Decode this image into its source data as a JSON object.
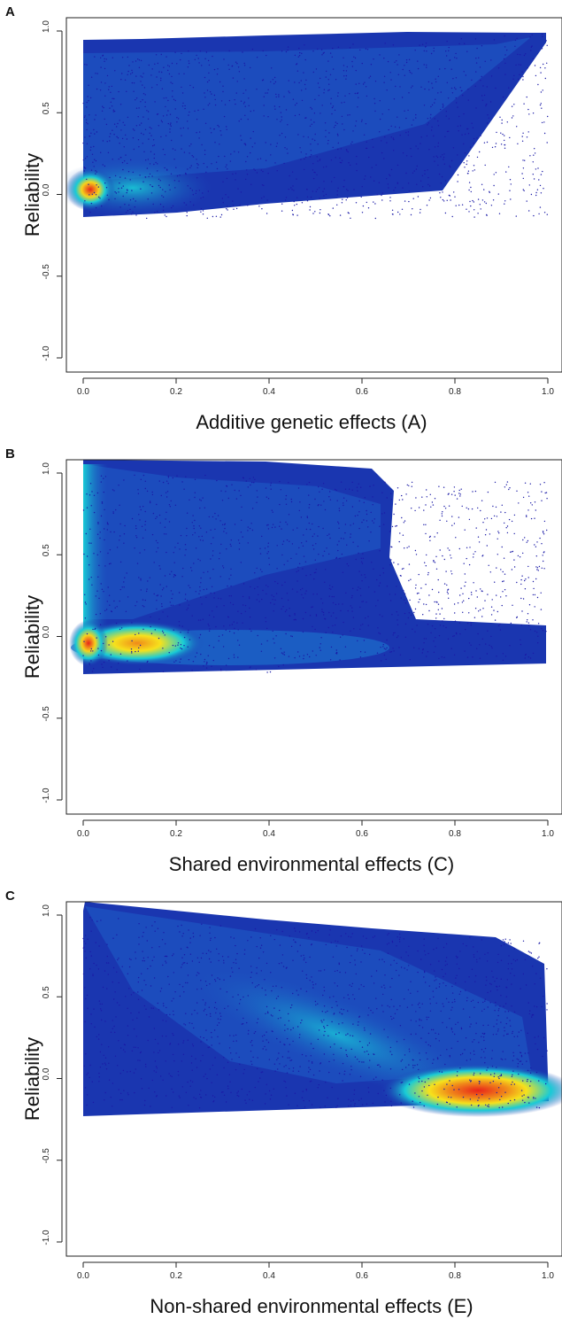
{
  "chart_data": [
    {
      "type": "scatter",
      "panel_label": "A",
      "xlabel": "Additive genetic effects (A)",
      "ylabel": "Reliability",
      "xlim": [
        0,
        1
      ],
      "ylim": [
        -1,
        1
      ],
      "x_ticks": [
        "0.0",
        "0.2",
        "0.4",
        "0.6",
        "0.8",
        "1.0"
      ],
      "y_ticks": [
        "-1.0",
        "-0.5",
        "0.0",
        "0.5",
        "1.0"
      ],
      "grid": false,
      "density_coloring": "blue to cyan to yellow to red",
      "density_peaks": [
        {
          "x": 0.01,
          "y": 0.02,
          "level": "red"
        },
        {
          "x": 0.08,
          "y": 0.02,
          "level": "cyan"
        }
      ],
      "y_range_of_points": [
        -0.22,
        0.99
      ]
    },
    {
      "type": "scatter",
      "panel_label": "B",
      "xlabel": "Shared environmental effects (C)",
      "ylabel": "Reliability",
      "xlim": [
        0,
        1
      ],
      "ylim": [
        -1,
        1
      ],
      "x_ticks": [
        "0.0",
        "0.2",
        "0.4",
        "0.6",
        "0.8",
        "1.0"
      ],
      "y_ticks": [
        "-1.0",
        "-0.5",
        "0.0",
        "0.5",
        "1.0"
      ],
      "grid": false,
      "density_coloring": "blue to cyan to yellow to red",
      "density_peaks": [
        {
          "x": 0.01,
          "y": 0.02,
          "level": "red"
        },
        {
          "x": 0.1,
          "y": 0.02,
          "level": "orange"
        },
        {
          "x": 0.02,
          "y": 0.5,
          "level": "cyan"
        }
      ],
      "y_range_of_points": [
        -0.22,
        0.99
      ]
    },
    {
      "type": "scatter",
      "panel_label": "C",
      "xlabel": "Non-shared environmental effects (E)",
      "ylabel": "Reliability",
      "xlim": [
        0,
        1
      ],
      "ylim": [
        -1,
        1
      ],
      "x_ticks": [
        "0.0",
        "0.2",
        "0.4",
        "0.6",
        "0.8",
        "1.0"
      ],
      "y_ticks": [
        "-1.0",
        "-0.5",
        "0.0",
        "0.5",
        "1.0"
      ],
      "grid": false,
      "density_coloring": "blue to cyan to yellow to red",
      "density_peaks": [
        {
          "x": 0.86,
          "y": 0.02,
          "level": "red"
        },
        {
          "x": 0.5,
          "y": 0.4,
          "level": "cyan"
        }
      ],
      "y_range_of_points": [
        -0.22,
        0.99
      ]
    }
  ],
  "colors": {
    "points": "#1a1aa6",
    "density_low": "#1b3fb5",
    "density_mid": "#17c9d8",
    "density_high": "#f7e51f",
    "density_peak": "#e8231a",
    "frame": "#222222"
  }
}
